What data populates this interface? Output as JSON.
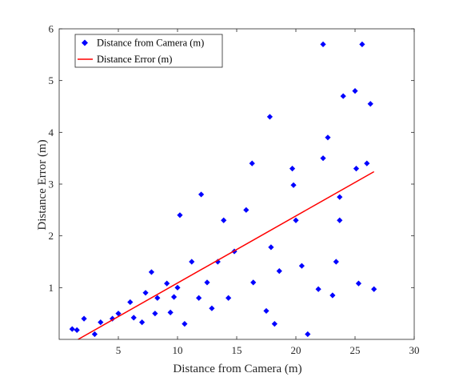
{
  "chart_data": {
    "type": "scatter",
    "xlabel": "Distance from Camera (m)",
    "ylabel": "Distance Error (m)",
    "xlim": [
      0,
      30
    ],
    "ylim": [
      0,
      6
    ],
    "xticks": [
      5,
      10,
      15,
      20,
      25,
      30
    ],
    "yticks": [
      1,
      2,
      3,
      4,
      5,
      6
    ],
    "grid": false,
    "legend_position": "top-left",
    "series": [
      {
        "name": "Distance from Camera (m)",
        "type": "scatter",
        "marker": "diamond",
        "color": "#0000ff",
        "points": [
          [
            1.1,
            0.2
          ],
          [
            1.5,
            0.18
          ],
          [
            2.1,
            0.4
          ],
          [
            3.0,
            0.1
          ],
          [
            3.5,
            0.33
          ],
          [
            4.5,
            0.4
          ],
          [
            5.0,
            0.5
          ],
          [
            6.0,
            0.72
          ],
          [
            6.3,
            0.42
          ],
          [
            7.0,
            0.33
          ],
          [
            7.3,
            0.9
          ],
          [
            7.8,
            1.3
          ],
          [
            8.1,
            0.5
          ],
          [
            8.3,
            0.8
          ],
          [
            9.1,
            1.08
          ],
          [
            9.4,
            0.52
          ],
          [
            9.7,
            0.82
          ],
          [
            10.0,
            1.0
          ],
          [
            10.2,
            2.4
          ],
          [
            10.6,
            0.3
          ],
          [
            11.2,
            1.5
          ],
          [
            11.8,
            0.8
          ],
          [
            12.0,
            2.8
          ],
          [
            12.5,
            1.1
          ],
          [
            12.9,
            0.6
          ],
          [
            13.4,
            1.5
          ],
          [
            13.9,
            2.3
          ],
          [
            14.3,
            0.8
          ],
          [
            14.8,
            1.7
          ],
          [
            15.8,
            2.5
          ],
          [
            16.3,
            3.4
          ],
          [
            16.4,
            1.1
          ],
          [
            17.5,
            0.55
          ],
          [
            17.8,
            4.3
          ],
          [
            17.9,
            1.78
          ],
          [
            18.2,
            0.3
          ],
          [
            18.6,
            1.32
          ],
          [
            19.7,
            3.3
          ],
          [
            19.8,
            2.98
          ],
          [
            20.0,
            2.3
          ],
          [
            20.5,
            1.42
          ],
          [
            21.0,
            0.1
          ],
          [
            21.9,
            0.97
          ],
          [
            22.3,
            3.5
          ],
          [
            22.3,
            5.7
          ],
          [
            22.7,
            3.9
          ],
          [
            23.1,
            0.85
          ],
          [
            23.4,
            1.5
          ],
          [
            23.7,
            2.75
          ],
          [
            23.7,
            2.3
          ],
          [
            24.0,
            4.7
          ],
          [
            25.0,
            4.8
          ],
          [
            25.1,
            3.3
          ],
          [
            25.3,
            1.08
          ],
          [
            25.6,
            5.7
          ],
          [
            26.0,
            3.4
          ],
          [
            26.3,
            4.55
          ],
          [
            26.6,
            0.97
          ]
        ]
      },
      {
        "name": "Distance Error (m)",
        "type": "line",
        "color": "#ff0000",
        "points": [
          [
            1.6,
            0.0
          ],
          [
            26.6,
            3.24
          ]
        ]
      }
    ]
  }
}
